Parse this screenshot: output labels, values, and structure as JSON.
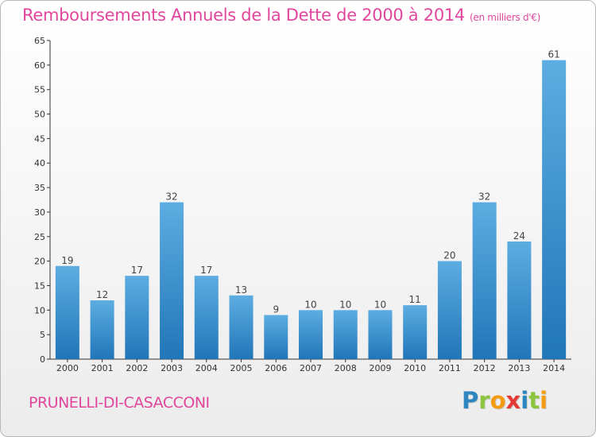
{
  "header": {
    "title": "Remboursements Annuels de la Dette de 2000 à 2014",
    "unit": "(en milliers d'€)"
  },
  "footer": {
    "commune": "PRUNELLI-DI-CASACCONI",
    "logo_letters": [
      "P",
      "r",
      "o",
      "x",
      "i",
      "t",
      "i"
    ],
    "logo_colors": [
      "#2e86c1",
      "#8cc63f",
      "#f39c12",
      "#e53935",
      "#2e86c1",
      "#8cc63f",
      "#f39c12"
    ]
  },
  "colors": {
    "bar_light": "#5dade2",
    "bar_dark": "#2176b8",
    "axis": "#333333",
    "grid": "#d0d0d0",
    "accent": "#e0479c"
  },
  "chart_data": {
    "type": "bar",
    "title": "Remboursements Annuels de la Dette de 2000 à 2014",
    "subtitle": "(en milliers d'€)",
    "xlabel": "",
    "ylabel": "",
    "categories": [
      "2000",
      "2001",
      "2002",
      "2003",
      "2004",
      "2005",
      "2006",
      "2007",
      "2008",
      "2009",
      "2010",
      "2011",
      "2012",
      "2013",
      "2014"
    ],
    "values": [
      19,
      12,
      17,
      32,
      17,
      13,
      9,
      10,
      10,
      10,
      11,
      20,
      32,
      24,
      61
    ],
    "ylim": [
      0,
      65
    ],
    "yticks": [
      0,
      5,
      10,
      15,
      20,
      25,
      30,
      35,
      40,
      45,
      50,
      55,
      60,
      65
    ],
    "grid": false,
    "data_labels": true
  }
}
